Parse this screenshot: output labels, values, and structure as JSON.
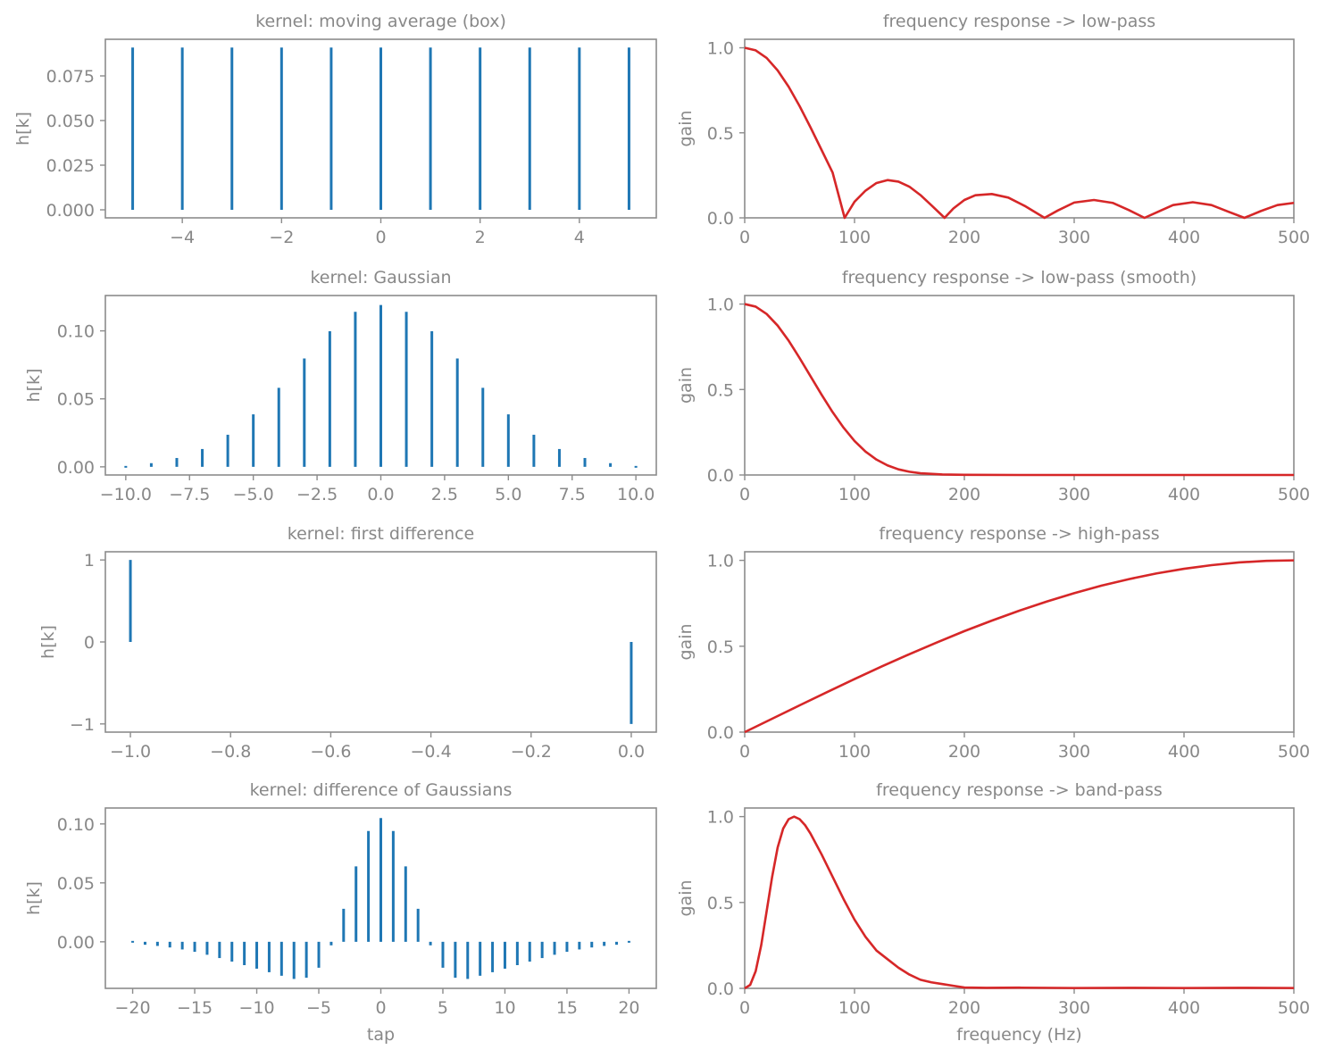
{
  "chart_data": [
    {
      "type": "stem",
      "title": "kernel: moving average (box)",
      "ylabel": "h[k]",
      "xlabel": "",
      "color": "#1f77b4",
      "xlim": [
        -5.55,
        5.55
      ],
      "ylim": [
        -0.0045,
        0.0955
      ],
      "xticks": [
        -4,
        -2,
        0,
        2,
        4
      ],
      "xtick_labels": [
        "−4",
        "−2",
        "0",
        "2",
        "4"
      ],
      "yticks": [
        0,
        0.025,
        0.05,
        0.075
      ],
      "ytick_labels": [
        "0.000",
        "0.025",
        "0.050",
        "0.075"
      ],
      "x": [
        -5,
        -4,
        -3,
        -2,
        -1,
        0,
        1,
        2,
        3,
        4,
        5
      ],
      "values": [
        0.0909,
        0.0909,
        0.0909,
        0.0909,
        0.0909,
        0.0909,
        0.0909,
        0.0909,
        0.0909,
        0.0909,
        0.0909
      ]
    },
    {
      "type": "line",
      "title": "frequency response -> low-pass",
      "ylabel": "gain",
      "xlabel": "",
      "color": "#d62728",
      "xlim": [
        0,
        500
      ],
      "ylim": [
        0,
        1.05
      ],
      "xticks": [
        0,
        100,
        200,
        300,
        400,
        500
      ],
      "xtick_labels": [
        "0",
        "100",
        "200",
        "300",
        "400",
        "500"
      ],
      "yticks": [
        0,
        0.5,
        1.0
      ],
      "ytick_labels": [
        "0.0",
        "0.5",
        "1.0"
      ],
      "x": [
        0,
        10,
        20,
        30,
        40,
        50,
        60,
        70,
        80,
        91,
        100,
        110,
        120,
        130,
        140,
        150,
        160,
        170,
        182,
        190,
        200,
        210,
        225,
        240,
        255,
        273,
        285,
        300,
        318,
        335,
        350,
        364,
        375,
        390,
        408,
        425,
        440,
        455,
        470,
        485,
        500
      ],
      "values": [
        1.0,
        0.985,
        0.94,
        0.867,
        0.771,
        0.657,
        0.531,
        0.399,
        0.267,
        0.0,
        0.095,
        0.16,
        0.205,
        0.222,
        0.213,
        0.183,
        0.134,
        0.074,
        0.0,
        0.055,
        0.105,
        0.133,
        0.14,
        0.119,
        0.07,
        0.0,
        0.043,
        0.09,
        0.105,
        0.088,
        0.045,
        0.0,
        0.032,
        0.075,
        0.092,
        0.075,
        0.037,
        0.0,
        0.04,
        0.075,
        0.088
      ]
    },
    {
      "type": "stem",
      "title": "kernel: Gaussian",
      "ylabel": "h[k]",
      "xlabel": "",
      "color": "#1f77b4",
      "xlim": [
        -10.8,
        10.8
      ],
      "ylim": [
        -0.006,
        0.126
      ],
      "xticks": [
        -10,
        -7.5,
        -5,
        -2.5,
        0,
        2.5,
        5,
        7.5,
        10
      ],
      "xtick_labels": [
        "−10.0",
        "−7.5",
        "−5.0",
        "−2.5",
        "0.0",
        "2.5",
        "5.0",
        "7.5",
        "10.0"
      ],
      "yticks": [
        0,
        0.05,
        0.1
      ],
      "ytick_labels": [
        "0.00",
        "0.05",
        "0.10"
      ],
      "x": [
        -10,
        -9,
        -8,
        -7,
        -6,
        -5,
        -4,
        -3,
        -2,
        -1,
        0,
        1,
        2,
        3,
        4,
        5,
        6,
        7,
        8,
        9,
        10
      ],
      "values": [
        0.0009,
        0.0027,
        0.0065,
        0.0131,
        0.0236,
        0.0386,
        0.0581,
        0.0797,
        0.0997,
        0.114,
        0.119,
        0.114,
        0.0997,
        0.0797,
        0.0581,
        0.0386,
        0.0236,
        0.0131,
        0.0065,
        0.0027,
        0.0009
      ]
    },
    {
      "type": "line",
      "title": "frequency response -> low-pass (smooth)",
      "ylabel": "gain",
      "xlabel": "",
      "color": "#d62728",
      "xlim": [
        0,
        500
      ],
      "ylim": [
        0,
        1.05
      ],
      "xticks": [
        0,
        100,
        200,
        300,
        400,
        500
      ],
      "xtick_labels": [
        "0",
        "100",
        "200",
        "300",
        "400",
        "500"
      ],
      "yticks": [
        0,
        0.5,
        1.0
      ],
      "ytick_labels": [
        "0.0",
        "0.5",
        "1.0"
      ],
      "x": [
        0,
        10,
        20,
        30,
        40,
        50,
        60,
        70,
        80,
        90,
        100,
        110,
        120,
        130,
        140,
        150,
        160,
        180,
        200,
        250,
        300,
        350,
        400,
        450,
        500
      ],
      "values": [
        1.0,
        0.985,
        0.942,
        0.874,
        0.786,
        0.684,
        0.577,
        0.47,
        0.368,
        0.277,
        0.199,
        0.137,
        0.09,
        0.056,
        0.033,
        0.019,
        0.01,
        0.003,
        0.001,
        0.0,
        0.0,
        0.0,
        0.0,
        0.0,
        0.0
      ]
    },
    {
      "type": "stem",
      "title": "kernel: first difference",
      "ylabel": "h[k]",
      "xlabel": "",
      "color": "#1f77b4",
      "xlim": [
        -1.05,
        0.05
      ],
      "ylim": [
        -1.1,
        1.1
      ],
      "xticks": [
        -1.0,
        -0.8,
        -0.6,
        -0.4,
        -0.2,
        0.0
      ],
      "xtick_labels": [
        "−1.0",
        "−0.8",
        "−0.6",
        "−0.4",
        "−0.2",
        "0.0"
      ],
      "yticks": [
        -1,
        0,
        1
      ],
      "ytick_labels": [
        "−1",
        "0",
        "1"
      ],
      "x": [
        -1,
        0
      ],
      "values": [
        1,
        -1
      ]
    },
    {
      "type": "line",
      "title": "frequency response -> high-pass",
      "ylabel": "gain",
      "xlabel": "",
      "color": "#d62728",
      "xlim": [
        0,
        500
      ],
      "ylim": [
        0,
        1.05
      ],
      "xticks": [
        0,
        100,
        200,
        300,
        400,
        500
      ],
      "xtick_labels": [
        "0",
        "100",
        "200",
        "300",
        "400",
        "500"
      ],
      "yticks": [
        0,
        0.5,
        1.0
      ],
      "ytick_labels": [
        "0.0",
        "0.5",
        "1.0"
      ],
      "x": [
        0,
        25,
        50,
        75,
        100,
        125,
        150,
        175,
        200,
        225,
        250,
        275,
        300,
        325,
        350,
        375,
        400,
        425,
        450,
        475,
        500
      ],
      "values": [
        0.0,
        0.078,
        0.156,
        0.233,
        0.309,
        0.383,
        0.454,
        0.522,
        0.588,
        0.649,
        0.707,
        0.76,
        0.809,
        0.853,
        0.891,
        0.924,
        0.951,
        0.972,
        0.988,
        0.997,
        1.0
      ]
    },
    {
      "type": "stem",
      "title": "kernel: difference of Gaussians",
      "ylabel": "h[k]",
      "xlabel": "tap",
      "color": "#1f77b4",
      "xlim": [
        -22.2,
        22.2
      ],
      "ylim": [
        -0.0395,
        0.1135
      ],
      "xticks": [
        -20,
        -15,
        -10,
        -5,
        0,
        5,
        10,
        15,
        20
      ],
      "xtick_labels": [
        "−20",
        "−15",
        "−10",
        "−5",
        "0",
        "5",
        "10",
        "15",
        "20"
      ],
      "yticks": [
        0,
        0.05,
        0.1
      ],
      "ytick_labels": [
        "0.00",
        "0.05",
        "0.10"
      ],
      "x": [
        -20,
        -19,
        -18,
        -17,
        -16,
        -15,
        -14,
        -13,
        -12,
        -11,
        -10,
        -9,
        -8,
        -7,
        -6,
        -5,
        -4,
        -3,
        -2,
        -1,
        0,
        1,
        2,
        3,
        4,
        5,
        6,
        7,
        8,
        9,
        10,
        11,
        12,
        13,
        14,
        15,
        16,
        17,
        18,
        19,
        20
      ],
      "values": [
        -0.0015,
        -0.0025,
        -0.0035,
        -0.0048,
        -0.0065,
        -0.0085,
        -0.011,
        -0.0138,
        -0.0168,
        -0.0198,
        -0.0228,
        -0.0258,
        -0.0288,
        -0.0315,
        -0.0305,
        -0.022,
        -0.003,
        0.028,
        0.064,
        0.094,
        0.105,
        0.094,
        0.064,
        0.028,
        -0.003,
        -0.022,
        -0.0305,
        -0.0315,
        -0.0288,
        -0.0258,
        -0.0228,
        -0.0198,
        -0.0168,
        -0.0138,
        -0.011,
        -0.0085,
        -0.0065,
        -0.0048,
        -0.0035,
        -0.0025,
        -0.0015
      ]
    },
    {
      "type": "line",
      "title": "frequency response -> band-pass",
      "ylabel": "gain",
      "xlabel": "frequency (Hz)",
      "color": "#d62728",
      "xlim": [
        0,
        500
      ],
      "ylim": [
        0,
        1.05
      ],
      "xticks": [
        0,
        100,
        200,
        300,
        400,
        500
      ],
      "xtick_labels": [
        "0",
        "100",
        "200",
        "300",
        "400",
        "500"
      ],
      "yticks": [
        0,
        0.5,
        1.0
      ],
      "ytick_labels": [
        "0.0",
        "0.5",
        "1.0"
      ],
      "x": [
        0,
        5,
        10,
        15,
        20,
        25,
        30,
        35,
        40,
        45,
        50,
        55,
        60,
        70,
        80,
        90,
        100,
        110,
        120,
        130,
        140,
        150,
        160,
        170,
        180,
        190,
        200,
        220,
        250,
        300,
        350,
        400,
        450,
        500
      ],
      "values": [
        0.0,
        0.02,
        0.1,
        0.25,
        0.45,
        0.65,
        0.82,
        0.93,
        0.985,
        1.0,
        0.985,
        0.95,
        0.9,
        0.78,
        0.65,
        0.52,
        0.4,
        0.3,
        0.22,
        0.17,
        0.12,
        0.08,
        0.05,
        0.035,
        0.025,
        0.015,
        0.005,
        0.003,
        0.004,
        0.002,
        0.003,
        0.002,
        0.003,
        0.002
      ]
    }
  ]
}
